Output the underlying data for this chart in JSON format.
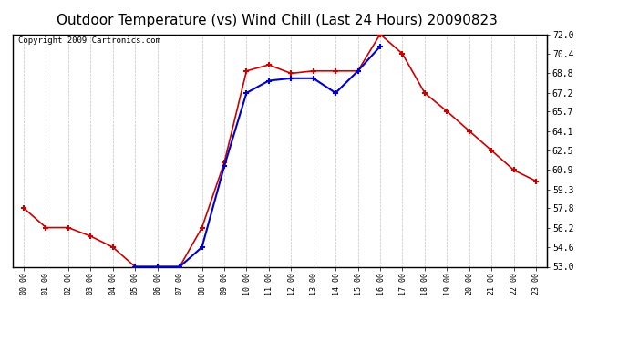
{
  "title": "Outdoor Temperature (vs) Wind Chill (Last 24 Hours) 20090823",
  "copyright": "Copyright 2009 Cartronics.com",
  "x_labels": [
    "00:00",
    "01:00",
    "02:00",
    "03:00",
    "04:00",
    "05:00",
    "06:00",
    "07:00",
    "08:00",
    "09:00",
    "10:00",
    "11:00",
    "12:00",
    "13:00",
    "14:00",
    "15:00",
    "16:00",
    "17:00",
    "18:00",
    "19:00",
    "20:00",
    "21:00",
    "22:00",
    "23:00"
  ],
  "temp_red": [
    57.8,
    56.2,
    56.2,
    55.5,
    54.6,
    53.0,
    53.0,
    53.0,
    56.2,
    61.5,
    69.0,
    69.5,
    68.8,
    69.0,
    69.0,
    69.0,
    72.0,
    70.4,
    67.2,
    65.7,
    64.1,
    62.5,
    60.9,
    60.0
  ],
  "wind_blue": [
    null,
    null,
    null,
    null,
    null,
    53.0,
    53.0,
    53.0,
    54.6,
    61.2,
    67.2,
    68.2,
    68.4,
    68.4,
    67.2,
    69.0,
    71.0,
    null,
    null,
    null,
    null,
    null,
    null,
    null
  ],
  "ylim_min": 53.0,
  "ylim_max": 72.0,
  "yticks": [
    53.0,
    54.6,
    56.2,
    57.8,
    59.3,
    60.9,
    62.5,
    64.1,
    65.7,
    67.2,
    68.8,
    70.4,
    72.0
  ],
  "red_color": "#cc0000",
  "blue_color": "#0000cc",
  "bg_color": "#ffffff",
  "grid_color": "#bbbbbb",
  "title_fontsize": 11,
  "copyright_fontsize": 6.5
}
